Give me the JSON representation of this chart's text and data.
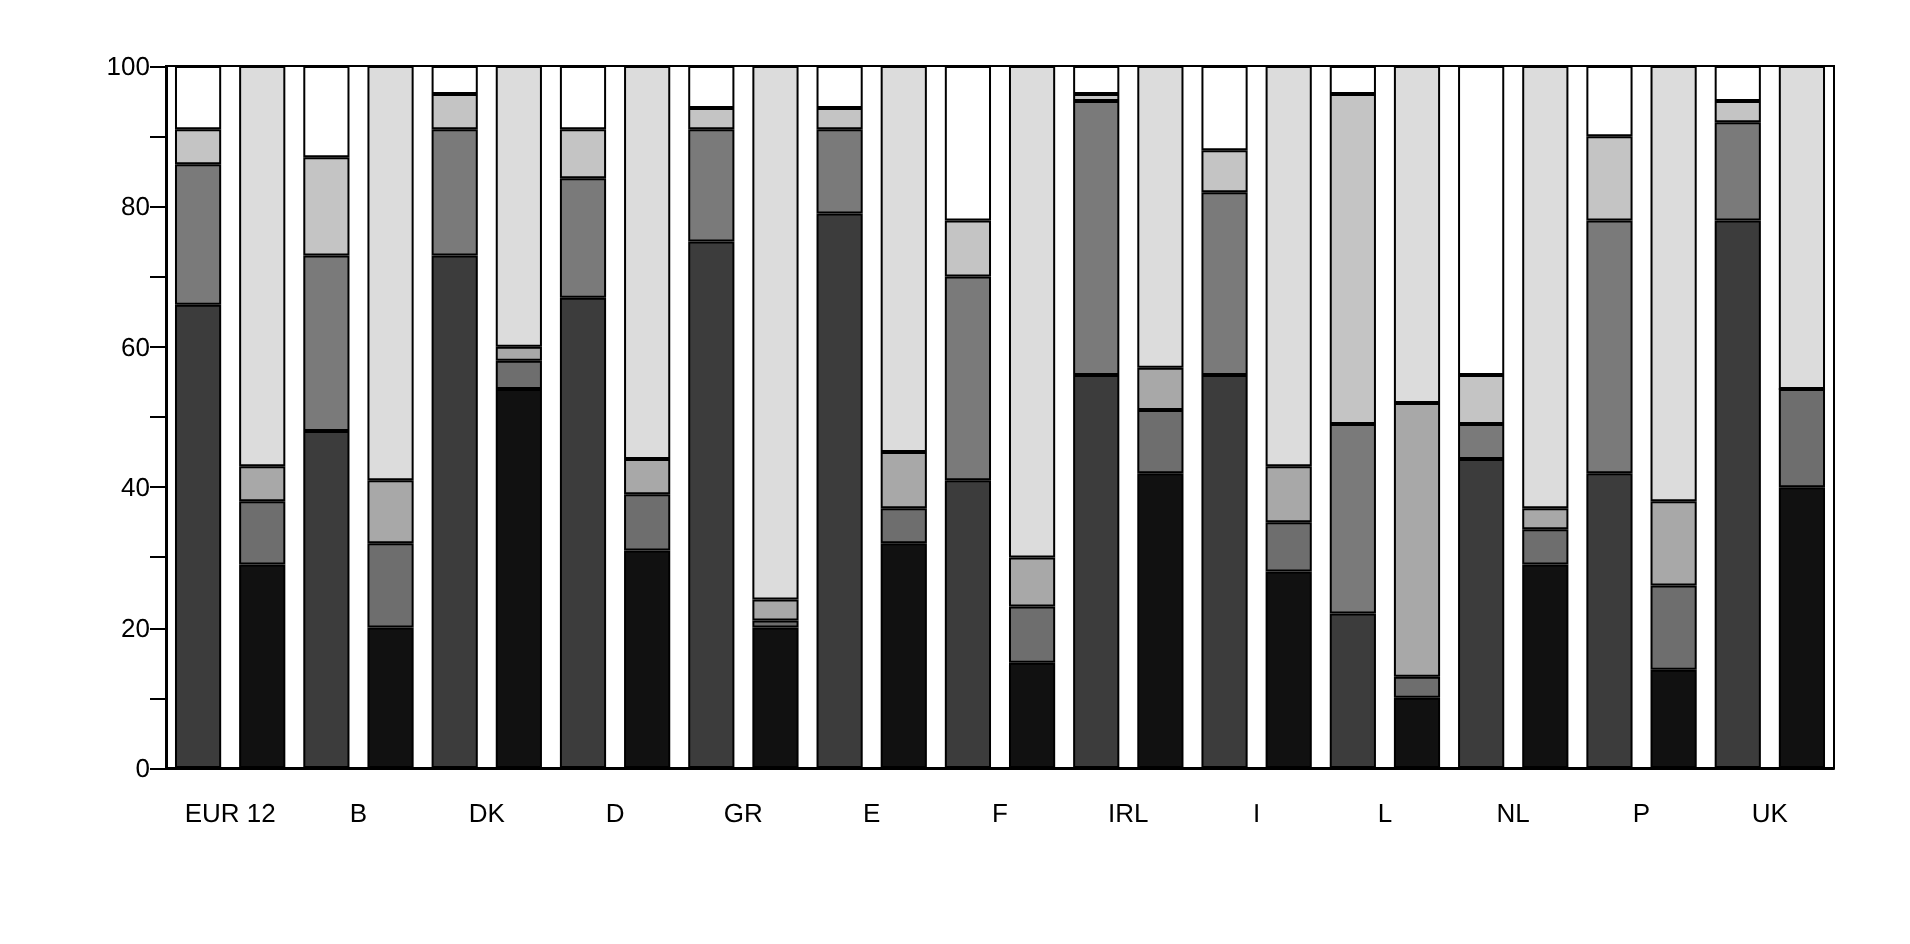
{
  "chart_data": {
    "type": "bar",
    "stacked": true,
    "grid": false,
    "categories": [
      "EUR 12",
      null,
      "B",
      null,
      "DK",
      null,
      "D",
      null,
      "GR",
      null,
      "E",
      null,
      "F",
      null,
      "IRL",
      null,
      "I",
      null,
      "L",
      null,
      "NL",
      null,
      "P",
      null,
      "UK",
      null
    ],
    "ylim": [
      0,
      100
    ],
    "yticks": [
      0,
      {
        "value": 10,
        "label": null
      },
      20,
      {
        "value": 30,
        "label": null
      },
      40,
      {
        "value": 50,
        "label": null
      },
      60,
      {
        "value": 70,
        "label": null
      },
      80,
      {
        "value": 90,
        "label": null
      },
      100
    ],
    "series": [
      {
        "colors": [
          "#3c3c3c",
          "#111111",
          "#3c3c3c",
          "#111111",
          "#3c3c3c",
          "#111111",
          "#3c3c3c",
          "#111111",
          "#3c3c3c",
          "#111111",
          "#3c3c3c",
          "#111111",
          "#3c3c3c",
          "#111111",
          "#3c3c3c",
          "#111111",
          "#3c3c3c",
          "#111111",
          "#3c3c3c",
          "#111111",
          "#3c3c3c",
          "#111111",
          "#3c3c3c",
          "#111111",
          "#3c3c3c",
          "#111111"
        ],
        "values": [
          66,
          29,
          48,
          20,
          73,
          54,
          67,
          31,
          75,
          20,
          79,
          32,
          41,
          15,
          56,
          42,
          56,
          28,
          22,
          10,
          44,
          29,
          42,
          14,
          78,
          40
        ]
      },
      {
        "colors": [
          "#7a7a7a",
          "#6e6e6e",
          "#7a7a7a",
          "#6e6e6e",
          "#7a7a7a",
          "#6e6e6e",
          "#7a7a7a",
          "#6e6e6e",
          "#7a7a7a",
          "#6e6e6e",
          "#7a7a7a",
          "#6e6e6e",
          "#7a7a7a",
          "#6e6e6e",
          "#7a7a7a",
          "#6e6e6e",
          "#7a7a7a",
          "#6e6e6e",
          "#7a7a7a",
          "#6e6e6e",
          "#7a7a7a",
          "#6e6e6e",
          "#7a7a7a",
          "#6e6e6e",
          "#7a7a7a",
          "#6e6e6e"
        ],
        "values": [
          20,
          9,
          25,
          12,
          18,
          4,
          17,
          8,
          16,
          1,
          12,
          5,
          29,
          8,
          39,
          9,
          26,
          7,
          27,
          3,
          5,
          5,
          36,
          12,
          14,
          14
        ]
      },
      {
        "colors": [
          "#c4c4c4",
          "#a8a8a8",
          "#c4c4c4",
          "#a8a8a8",
          "#c4c4c4",
          "#a8a8a8",
          "#c4c4c4",
          "#a8a8a8",
          "#c4c4c4",
          "#a8a8a8",
          "#c4c4c4",
          "#a8a8a8",
          "#c4c4c4",
          "#a8a8a8",
          "#c4c4c4",
          "#a8a8a8",
          "#c4c4c4",
          "#a8a8a8",
          "#c4c4c4",
          "#a8a8a8",
          "#c4c4c4",
          "#a8a8a8",
          "#c4c4c4",
          "#a8a8a8",
          "#c4c4c4",
          "#a8a8a8"
        ],
        "values": [
          5,
          5,
          14,
          9,
          5,
          2,
          7,
          5,
          3,
          3,
          3,
          8,
          8,
          7,
          1,
          6,
          6,
          8,
          47,
          39,
          7,
          3,
          12,
          12,
          3,
          0
        ]
      },
      {
        "colors": [
          "#ffffff",
          "#dcdcdc",
          "#ffffff",
          "#dcdcdc",
          "#ffffff",
          "#dcdcdc",
          "#ffffff",
          "#dcdcdc",
          "#ffffff",
          "#dcdcdc",
          "#ffffff",
          "#dcdcdc",
          "#ffffff",
          "#dcdcdc",
          "#ffffff",
          "#dcdcdc",
          "#ffffff",
          "#dcdcdc",
          "#ffffff",
          "#dcdcdc",
          "#ffffff",
          "#dcdcdc",
          "#ffffff",
          "#dcdcdc",
          "#ffffff",
          "#dcdcdc"
        ],
        "values": [
          9,
          57,
          13,
          59,
          4,
          40,
          9,
          56,
          6,
          76,
          6,
          55,
          22,
          70,
          4,
          43,
          12,
          57,
          4,
          48,
          44,
          63,
          10,
          62,
          5,
          46
        ]
      }
    ]
  }
}
